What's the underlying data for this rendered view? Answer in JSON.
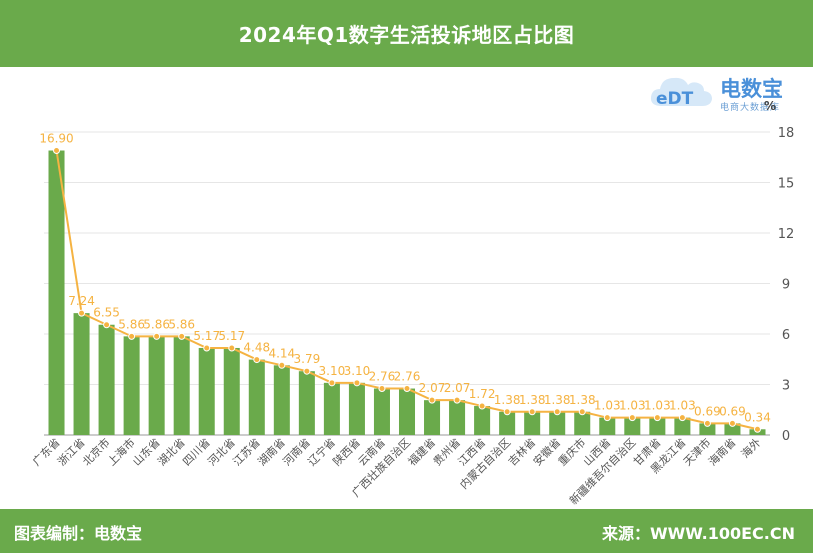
{
  "header": {
    "title": "2024年Q1数字生活投诉地区占比图"
  },
  "logo": {
    "brand": "电数宝",
    "tagline": "电商大数据库"
  },
  "footer": {
    "left": "图表编制：电数宝",
    "right": "来源：WWW.100EC.CN"
  },
  "colors": {
    "header_bg": "#6aaa4b",
    "bar": "#6aaa4b",
    "line": "#f5b342",
    "label": "#f5b342"
  },
  "chart_data": {
    "type": "bar",
    "unit": "%",
    "categories": [
      "广东省",
      "浙江省",
      "北京市",
      "上海市",
      "山东省",
      "湖北省",
      "四川省",
      "河北省",
      "江苏省",
      "湖南省",
      "河南省",
      "辽宁省",
      "陕西省",
      "云南省",
      "广西壮族自治区",
      "福建省",
      "贵州省",
      "江西省",
      "内蒙古自治区",
      "吉林省",
      "安徽省",
      "重庆市",
      "山西省",
      "新疆维吾尔自治区",
      "甘肃省",
      "黑龙江省",
      "天津市",
      "海南省",
      "海外"
    ],
    "values": [
      16.9,
      7.24,
      6.55,
      5.86,
      5.86,
      5.86,
      5.17,
      5.17,
      4.48,
      4.14,
      3.79,
      3.1,
      3.1,
      2.76,
      2.76,
      2.07,
      2.07,
      1.72,
      1.38,
      1.38,
      1.38,
      1.38,
      1.03,
      1.03,
      1.03,
      1.03,
      0.69,
      0.69,
      0.34
    ],
    "value_labels": [
      "16.90",
      "7.24",
      "6.55",
      "5.86",
      "5.86",
      "5.86",
      "5.17",
      "5.17",
      "4.48",
      "4.14",
      "3.79",
      "3.10",
      "3.10",
      "2.76",
      "2.76",
      "2.07",
      "2.07",
      "1.72",
      "1.38",
      "1.38",
      "1.38",
      "1.38",
      "1.03",
      "1.03",
      "1.03",
      "1.03",
      "0.69",
      "0.69",
      "0.34"
    ],
    "ylim": [
      0,
      18
    ],
    "yticks": [
      0,
      3,
      6,
      9,
      12,
      15,
      18
    ],
    "y_axis_side": "right",
    "grid": true,
    "overlay_line": true
  }
}
